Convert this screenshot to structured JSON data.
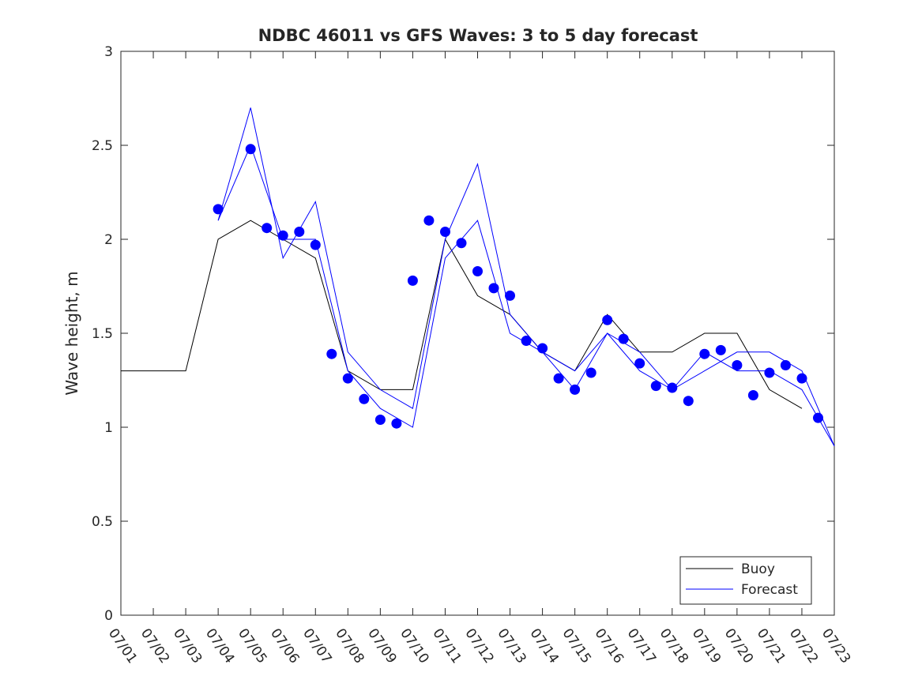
{
  "chart_data": {
    "type": "line",
    "title": "NDBC 46011 vs GFS Waves: 3 to 5 day forecast",
    "xlabel": "",
    "ylabel": "Wave height, m",
    "ylim": [
      0,
      3
    ],
    "yticks": [
      0,
      0.5,
      1,
      1.5,
      2,
      2.5,
      3
    ],
    "ytick_labels": [
      "0",
      "0.5",
      "1",
      "1.5",
      "2",
      "2.5",
      "3"
    ],
    "xlim": [
      "07/01",
      "07/23"
    ],
    "xtick_labels": [
      "07/01",
      "07/02",
      "07/03",
      "07/04",
      "07/05",
      "07/06",
      "07/07",
      "07/08",
      "07/09",
      "07/10",
      "07/11",
      "07/12",
      "07/13",
      "07/14",
      "07/15",
      "07/16",
      "07/17",
      "07/18",
      "07/19",
      "07/20",
      "07/21",
      "07/22",
      "07/23"
    ],
    "grid": false,
    "legend": {
      "placement": "bottom-right",
      "entries": [
        "Buoy",
        "Forecast"
      ]
    },
    "colors": {
      "buoy": "#000000",
      "forecast": "#0000ff",
      "axis": "#262626"
    },
    "series": [
      {
        "name": "Buoy",
        "style": "line",
        "x": [
          "07/01",
          "07/02",
          "07/03",
          "07/04",
          "07/05",
          "07/06",
          "07/07",
          "07/08",
          "07/09",
          "07/10",
          "07/11",
          "07/12",
          "07/13",
          "07/14",
          "07/15",
          "07/16",
          "07/17",
          "07/18",
          "07/19",
          "07/20",
          "07/21",
          "07/22"
        ],
        "y": [
          1.3,
          1.3,
          1.3,
          2.0,
          2.1,
          2.0,
          1.9,
          1.3,
          1.2,
          1.2,
          2.0,
          1.7,
          1.6,
          1.4,
          1.3,
          1.6,
          1.4,
          1.4,
          1.5,
          1.5,
          1.2,
          1.1
        ]
      },
      {
        "name": "Forecast",
        "style": "lines",
        "runs": [
          {
            "x": [
              "07/04",
              "07/05",
              "07/06",
              "07/07",
              "07/08",
              "07/09",
              "07/10",
              "07/11",
              "07/12",
              "07/13",
              "07/14",
              "07/15",
              "07/16",
              "07/17",
              "07/18",
              "07/19",
              "07/20",
              "07/21",
              "07/22",
              "07/23"
            ],
            "y": [
              2.1,
              2.7,
              1.9,
              2.2,
              1.4,
              1.2,
              1.1,
              2.0,
              2.4,
              1.6,
              1.4,
              1.3,
              1.5,
              1.4,
              1.2,
              1.3,
              1.4,
              1.4,
              1.3,
              0.9
            ]
          },
          {
            "x": [
              "07/04",
              "07/05",
              "07/06",
              "07/07",
              "07/08",
              "07/09",
              "07/10",
              "07/11",
              "07/12",
              "07/13",
              "07/14",
              "07/15",
              "07/16",
              "07/17",
              "07/18",
              "07/19",
              "07/20",
              "07/21",
              "07/22",
              "07/23"
            ],
            "y": [
              2.1,
              2.5,
              2.0,
              2.0,
              1.3,
              1.1,
              1.0,
              1.9,
              2.1,
              1.5,
              1.4,
              1.2,
              1.5,
              1.3,
              1.2,
              1.4,
              1.3,
              1.3,
              1.2,
              0.9
            ]
          }
        ]
      },
      {
        "name": "",
        "style": "markers",
        "x": [
          "07/04",
          "07/05",
          "07/05",
          "07/06",
          "07/06",
          "07/07",
          "07/07",
          "07/08",
          "07/08",
          "07/09",
          "07/09",
          "07/10",
          "07/10",
          "07/11",
          "07/11",
          "07/12",
          "07/12",
          "07/13",
          "07/13",
          "07/14",
          "07/14",
          "07/15",
          "07/15",
          "07/16",
          "07/16",
          "07/17",
          "07/17",
          "07/18",
          "07/18",
          "07/19",
          "07/19",
          "07/20",
          "07/20",
          "07/21",
          "07/21",
          "07/22",
          "07/22"
        ],
        "y": [
          2.16,
          2.48,
          2.06,
          2.02,
          2.04,
          1.97,
          1.39,
          1.26,
          1.15,
          1.04,
          1.02,
          1.78,
          2.1,
          2.04,
          1.98,
          1.83,
          1.74,
          1.7,
          1.46,
          1.42,
          1.26,
          1.2,
          1.29,
          1.57,
          1.47,
          1.34,
          1.22,
          1.21,
          1.14,
          1.39,
          1.41,
          1.33,
          1.17,
          1.29,
          1.33,
          1.26,
          1.05
        ]
      }
    ]
  }
}
